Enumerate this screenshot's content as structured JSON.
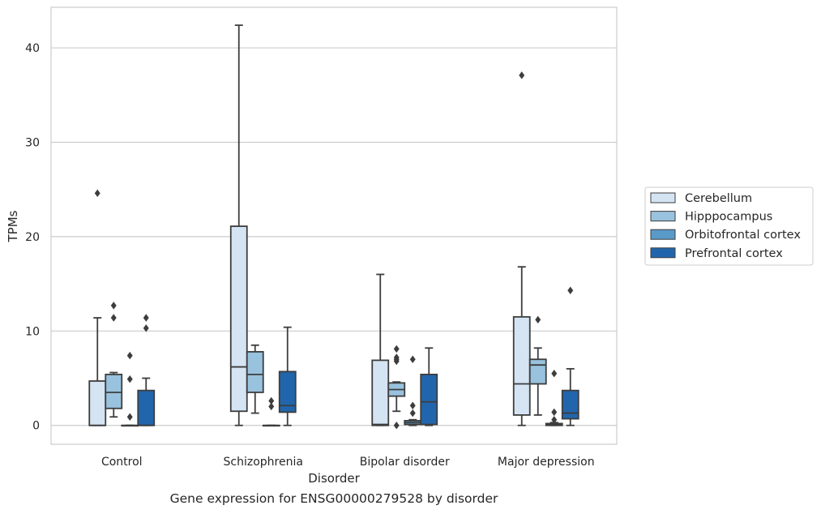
{
  "caption": "Gene expression for ENSG00000279528 by disorder",
  "chart_data": {
    "type": "box",
    "xlabel": "Disorder",
    "ylabel": "TPMs",
    "ylim": [
      -2,
      44.3
    ],
    "yticks": [
      0,
      10,
      20,
      30,
      40
    ],
    "grid": true,
    "legend_position": "right-outside",
    "categories": [
      "Control",
      "Schizophrenia",
      "Bipolar disorder",
      "Major depression"
    ],
    "series": [
      {
        "name": "Cerebellum",
        "color": "#d4e4f3",
        "boxes": [
          {
            "min": 0,
            "q1": 0,
            "median": 0,
            "q3": 4.7,
            "max": 11.4,
            "outliers": [
              24.6
            ]
          },
          {
            "min": 0,
            "q1": 1.5,
            "median": 6.2,
            "q3": 21.1,
            "max": 42.4,
            "outliers": []
          },
          {
            "min": 0,
            "q1": 0,
            "median": 0.1,
            "q3": 6.9,
            "max": 16.0,
            "outliers": []
          },
          {
            "min": 0,
            "q1": 1.1,
            "median": 4.4,
            "q3": 11.5,
            "max": 16.8,
            "outliers": [
              37.1
            ]
          }
        ]
      },
      {
        "name": "Hipppocampus",
        "color": "#99c2de",
        "boxes": [
          {
            "min": 0.9,
            "q1": 1.8,
            "median": 3.5,
            "q3": 5.4,
            "max": 5.6,
            "outliers": [
              11.4,
              12.7
            ]
          },
          {
            "min": 1.3,
            "q1": 3.5,
            "median": 5.4,
            "q3": 7.8,
            "max": 8.5,
            "outliers": []
          },
          {
            "min": 1.5,
            "q1": 3.1,
            "median": 3.8,
            "q3": 4.5,
            "max": 4.6,
            "outliers": [
              0,
              6.8,
              7.0,
              7.2,
              8.1
            ]
          },
          {
            "min": 1.1,
            "q1": 4.4,
            "median": 6.4,
            "q3": 7.0,
            "max": 8.2,
            "outliers": [
              11.2
            ]
          }
        ]
      },
      {
        "name": "Orbitofrontal cortex",
        "color": "#5a9ac9",
        "boxes": [
          {
            "min": 0,
            "q1": 0,
            "median": 0,
            "q3": 0,
            "max": 0,
            "outliers": [
              0.9,
              4.9,
              7.4
            ]
          },
          {
            "min": 0,
            "q1": 0,
            "median": 0,
            "q3": 0,
            "max": 0,
            "outliers": [
              2.0,
              2.6
            ]
          },
          {
            "min": 0,
            "q1": 0.1,
            "median": 0.3,
            "q3": 0.5,
            "max": 0.6,
            "outliers": [
              1.3,
              2.1,
              7.0
            ]
          },
          {
            "min": 0,
            "q1": 0,
            "median": 0.1,
            "q3": 0.2,
            "max": 0.3,
            "outliers": [
              0.6,
              1.4,
              5.5
            ]
          }
        ]
      },
      {
        "name": "Prefrontal cortex",
        "color": "#2166ac",
        "boxes": [
          {
            "min": 0,
            "q1": 0,
            "median": 0,
            "q3": 3.7,
            "max": 5.0,
            "outliers": [
              10.3,
              11.4
            ]
          },
          {
            "min": 0,
            "q1": 1.4,
            "median": 2.1,
            "q3": 5.7,
            "max": 10.4,
            "outliers": []
          },
          {
            "min": 0,
            "q1": 0.1,
            "median": 2.5,
            "q3": 5.4,
            "max": 8.2,
            "outliers": []
          },
          {
            "min": 0,
            "q1": 0.7,
            "median": 1.3,
            "q3": 3.7,
            "max": 6.0,
            "outliers": [
              14.3
            ]
          }
        ]
      }
    ]
  }
}
